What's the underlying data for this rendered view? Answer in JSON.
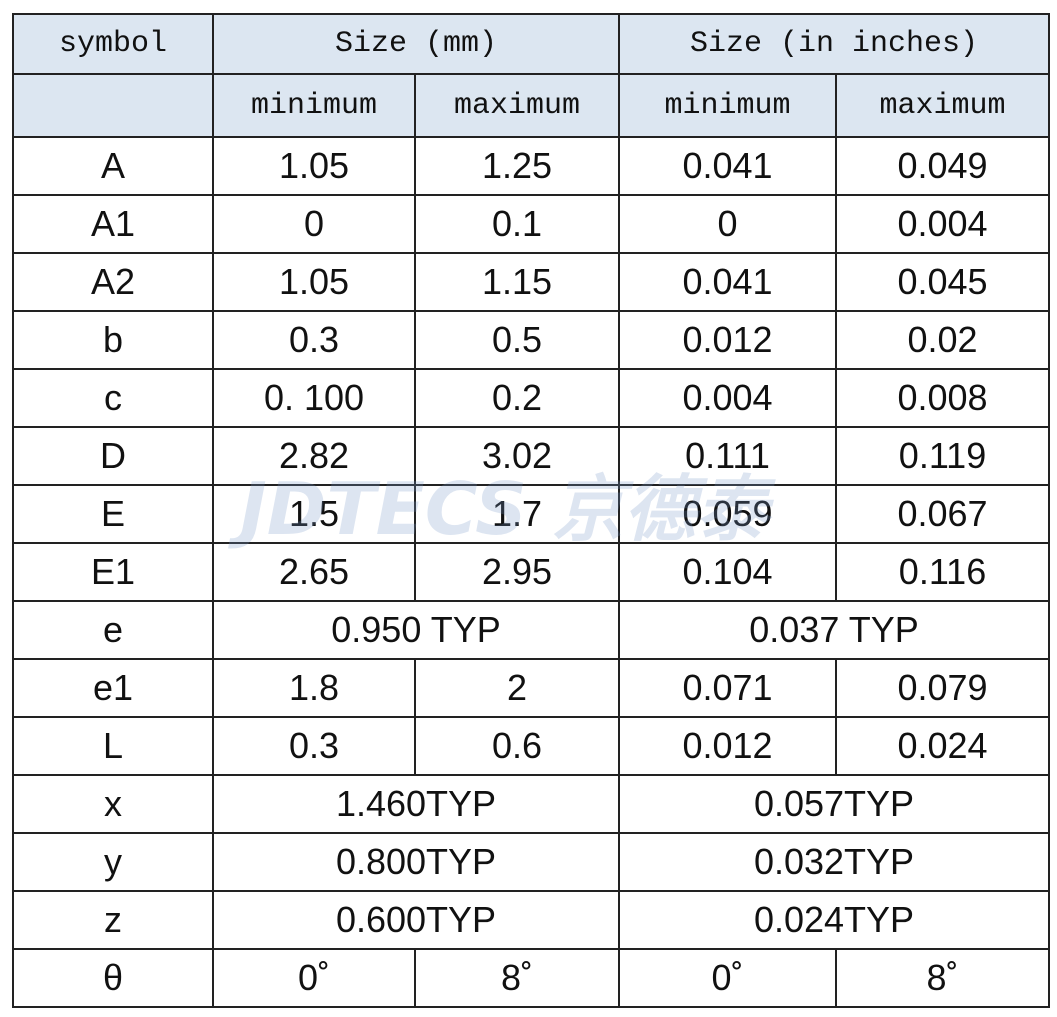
{
  "table": {
    "header": [
      "symbol",
      "Size (mm)",
      "Size (in inches)"
    ],
    "subheader": [
      "minimum",
      "maximum",
      "minimum",
      "maximum"
    ],
    "rows": [
      [
        "A",
        "1.05",
        "1.25",
        "0.041",
        "0.049"
      ],
      [
        "A1",
        "0",
        "0.1",
        "0",
        "0.004"
      ],
      [
        "A2",
        "1.05",
        "1.15",
        "0.041",
        "0.045"
      ],
      [
        "b",
        "0.3",
        "0.5",
        "0.012",
        "0.02"
      ],
      [
        "c",
        "0. 100",
        "0.2",
        "0.004",
        "0.008"
      ],
      [
        "D",
        "2.82",
        "3.02",
        "0.111",
        "0.119"
      ],
      [
        "E",
        "1.5",
        "1.7",
        "0.059",
        "0.067"
      ],
      [
        "E1",
        "2.65",
        "2.95",
        "0.104",
        "0.116"
      ],
      [
        "e",
        "0.950 TYP",
        "0.037 TYP"
      ],
      [
        "e1",
        "1.8",
        "2",
        "0.071",
        "0.079"
      ],
      [
        "L",
        "0.3",
        "0.6",
        "0.012",
        "0.024"
      ],
      [
        "x",
        "1.460TYP",
        "0.057TYP"
      ],
      [
        "y",
        "0.800TYP",
        "0.032TYP"
      ],
      [
        "z",
        "0.600TYP",
        "0.024TYP"
      ],
      [
        "θ",
        "0˚",
        "8˚",
        "0˚",
        "8˚"
      ]
    ]
  },
  "watermark": "JDTECS 京德泰"
}
